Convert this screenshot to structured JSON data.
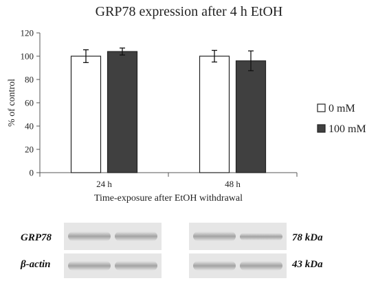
{
  "chart_data": {
    "type": "bar",
    "title": "GRP78 expression after 4 h EtOH",
    "categories": [
      "24 h",
      "48 h"
    ],
    "series": [
      {
        "name": "0 mM",
        "values": [
          100,
          100
        ],
        "errors": [
          5.5,
          5.0
        ],
        "color": "#ffffff"
      },
      {
        "name": "100 mM",
        "values": [
          104,
          96
        ],
        "errors": [
          3.0,
          8.5
        ],
        "color": "#404040"
      }
    ],
    "xlabel": "Time-exposure after EtOH withdrawal",
    "ylabel": "% of control",
    "ylim": [
      0,
      120
    ],
    "yticks": [
      0,
      20,
      40,
      60,
      80,
      100,
      120
    ],
    "grid": false,
    "legend_position": "right"
  },
  "blot": {
    "rows": [
      {
        "label": "GRP78",
        "size": "78 kDa"
      },
      {
        "label": "β-actin",
        "size": "43 kDa"
      }
    ]
  }
}
